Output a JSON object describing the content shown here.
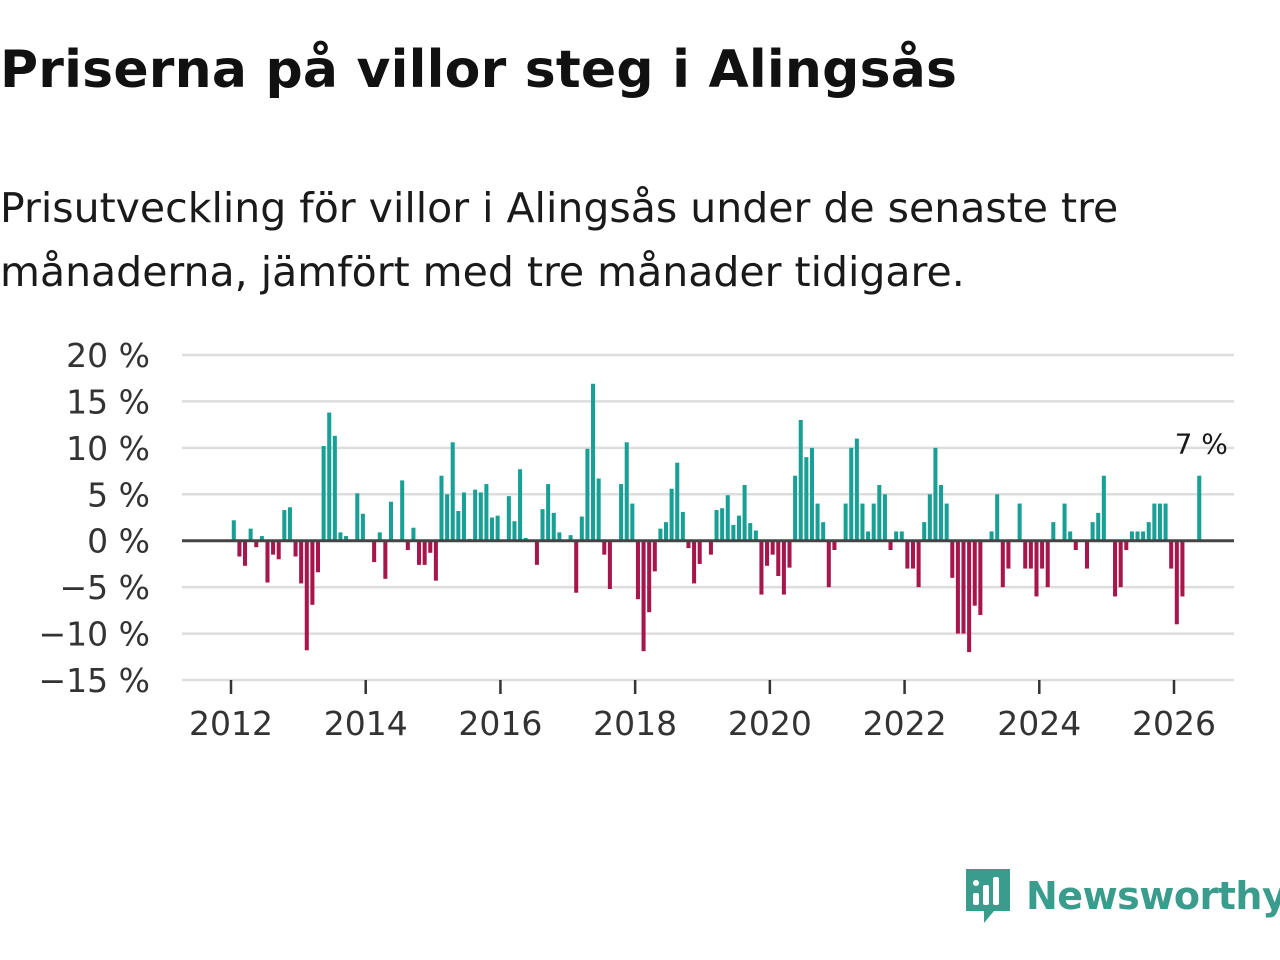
{
  "title": "Priserna på villor steg i Alingsås",
  "subtitle": "Prisutveckling för villor i Alingsås under de senaste tre månaderna, jämfört med tre månader tidigare.",
  "brand": {
    "name": "Newsworthy",
    "color": "#3a9c8d"
  },
  "colors": {
    "positive": "#18a096",
    "negative": "#a6154b",
    "grid": "#dddddd",
    "zero": "#444444"
  },
  "chart_data": {
    "type": "bar",
    "title": "Priserna på villor steg i Alingsås",
    "xlabel": "",
    "ylabel": "",
    "ylim": [
      -15,
      20
    ],
    "y_ticks": [
      20,
      15,
      10,
      5,
      0,
      -5,
      -10,
      -15
    ],
    "y_tick_labels": [
      "20 %",
      "15 %",
      "10 %",
      "5 %",
      "0 %",
      "−5 %",
      "−10 %",
      "−15 %"
    ],
    "x_ticks": [
      2012,
      2014,
      2016,
      2018,
      2020,
      2022,
      2024,
      2026
    ],
    "x_tick_labels": [
      "2012",
      "2014",
      "2016",
      "2018",
      "2020",
      "2022",
      "2024",
      "2026"
    ],
    "grid": true,
    "legend": "none",
    "series": [
      {
        "name": "Prisutveckling",
        "start": "2012-01",
        "interval": "month",
        "values": [
          2.2,
          -1.7,
          -2.7,
          1.3,
          -0.7,
          0.5,
          -4.5,
          -1.5,
          -2.0,
          3.3,
          3.6,
          -1.7,
          -4.6,
          -11.8,
          -6.9,
          -3.4,
          10.2,
          13.8,
          11.3,
          0.9,
          0.5,
          0.0,
          5.1,
          2.9,
          0.0,
          -2.3,
          0.9,
          -4.1,
          4.2,
          0.0,
          6.5,
          -1.0,
          1.4,
          -2.6,
          -2.6,
          -1.3,
          -4.3,
          7.0,
          5.0,
          10.6,
          3.2,
          5.2,
          0.2,
          5.5,
          5.2,
          6.1,
          2.5,
          2.7,
          0.0,
          4.8,
          2.1,
          7.7,
          0.3,
          0.0,
          -2.6,
          3.4,
          6.1,
          3.0,
          0.9,
          0.0,
          0.6,
          -5.6,
          2.6,
          9.9,
          16.9,
          6.7,
          -1.5,
          -5.2,
          0.0,
          6.1,
          10.6,
          4.0,
          -6.3,
          -11.9,
          -7.7,
          -3.3,
          1.3,
          2.0,
          5.6,
          8.4,
          3.1,
          -0.8,
          -4.6,
          -2.5,
          0.0,
          -1.5,
          3.3,
          3.5,
          4.9,
          1.7,
          2.7,
          6.0,
          1.9,
          1.1,
          -5.8,
          -2.7,
          -1.5,
          -3.8,
          -5.8,
          -2.9,
          7.0,
          13.0,
          9.0,
          10.0,
          4.0,
          2.0,
          -5.0,
          -1.0,
          0.0,
          4.0,
          10.0,
          11.0,
          4.0,
          1.0,
          4.0,
          6.0,
          5.0,
          -1.0,
          1.0,
          1.0,
          -3.0,
          -3.0,
          -5.0,
          2.0,
          5.0,
          10.0,
          6.0,
          4.0,
          -4.0,
          -10.0,
          -10.0,
          -12.0,
          -7.0,
          -8.0,
          0.0,
          1.0,
          5.0,
          -5.0,
          -3.0,
          0.0,
          4.0,
          -3.0,
          -3.0,
          -6.0,
          -3.0,
          -5.0,
          2.0,
          0.0,
          4.0,
          1.0,
          -1.0,
          0.0,
          -3.0,
          2.0,
          3.0,
          7.0,
          0.0,
          -6.0,
          -5.0,
          -1.0,
          1.0,
          1.0,
          1.0,
          2.0,
          4.0,
          4.0,
          4.0,
          -3.0,
          -9.0,
          -6.0,
          0.0,
          0.0,
          7.0
        ]
      }
    ],
    "annotations": [
      {
        "text": "7 %",
        "target": "last"
      }
    ]
  }
}
